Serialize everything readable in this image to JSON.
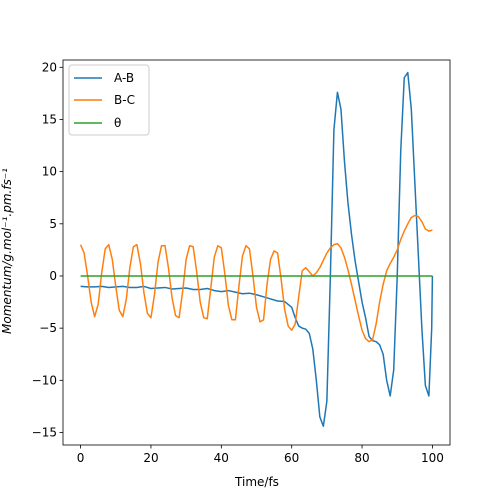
{
  "chart_data": {
    "type": "line",
    "xlabel": "Time/fs",
    "ylabel": "Momentum/g.mol⁻¹.pm.fs⁻¹",
    "xlim": [
      -5,
      105
    ],
    "ylim": [
      -16.2,
      20.7
    ],
    "xticks": [
      0,
      20,
      40,
      60,
      80,
      100
    ],
    "yticks": [
      -15,
      -10,
      -5,
      0,
      5,
      10,
      15,
      20
    ],
    "grid": false,
    "legend_position": "top-left",
    "series": [
      {
        "name": "A-B",
        "color": "#1f77b4",
        "x": [
          0,
          2,
          4,
          6,
          8,
          10,
          12,
          14,
          16,
          18,
          20,
          22,
          24,
          26,
          28,
          30,
          32,
          34,
          36,
          38,
          40,
          42,
          44,
          46,
          48,
          50,
          52,
          54,
          56,
          58,
          60,
          61,
          62,
          63,
          64,
          65,
          66,
          67,
          68,
          69,
          70,
          71,
          72,
          73,
          74,
          75,
          76,
          77,
          78,
          79,
          80,
          81,
          82,
          83,
          84,
          85,
          86,
          87,
          88,
          89,
          90,
          91,
          92,
          93,
          94,
          95,
          96,
          97,
          98,
          99,
          99.8,
          100
        ],
        "y": [
          -1.0,
          -1.05,
          -1.05,
          -1.0,
          -1.1,
          -1.05,
          -1.0,
          -1.1,
          -1.1,
          -1.0,
          -1.2,
          -1.15,
          -1.1,
          -1.25,
          -1.2,
          -1.15,
          -1.3,
          -1.3,
          -1.2,
          -1.4,
          -1.5,
          -1.4,
          -1.55,
          -1.7,
          -1.65,
          -1.8,
          -2.0,
          -2.2,
          -2.4,
          -2.45,
          -3.0,
          -4.0,
          -4.8,
          -5.0,
          -5.1,
          -5.5,
          -7.0,
          -10.0,
          -13.5,
          -14.4,
          -12.0,
          0.0,
          14.0,
          17.6,
          16.0,
          11.0,
          7.0,
          4.0,
          1.5,
          -0.5,
          -2.5,
          -4.0,
          -5.8,
          -6.2,
          -6.3,
          -6.6,
          -7.5,
          -10.0,
          -11.5,
          -9.0,
          0.0,
          12.0,
          19.0,
          19.5,
          16.0,
          9.0,
          2.0,
          -5.0,
          -10.5,
          -11.5,
          -5.0,
          0.0
        ]
      },
      {
        "name": "B-C",
        "color": "#ff7f0e",
        "x": [
          0,
          1,
          2,
          3,
          4,
          5,
          6,
          7,
          8,
          9,
          10,
          11,
          12,
          13,
          14,
          15,
          16,
          17,
          18,
          19,
          20,
          21,
          22,
          23,
          24,
          25,
          26,
          27,
          28,
          29,
          30,
          31,
          32,
          33,
          34,
          35,
          36,
          37,
          38,
          39,
          40,
          41,
          42,
          43,
          44,
          45,
          46,
          47,
          48,
          49,
          50,
          51,
          52,
          53,
          54,
          55,
          56,
          57,
          58,
          59,
          60,
          61,
          62,
          63,
          64,
          65,
          66,
          67,
          68,
          69,
          70,
          71,
          72,
          73,
          74,
          75,
          76,
          77,
          78,
          79,
          80,
          81,
          82,
          83,
          84,
          85,
          86,
          87,
          88,
          89,
          90,
          91,
          92,
          93,
          94,
          95,
          96,
          97,
          98,
          99,
          100
        ],
        "y": [
          3.0,
          2.2,
          0.0,
          -2.5,
          -3.9,
          -2.7,
          0.3,
          2.6,
          3.0,
          1.6,
          -1.0,
          -3.3,
          -3.9,
          -2.2,
          0.8,
          2.8,
          3.0,
          1.2,
          -1.6,
          -3.6,
          -4.0,
          -1.8,
          1.3,
          2.9,
          2.9,
          0.7,
          -2.1,
          -3.8,
          -4.0,
          -1.5,
          1.6,
          2.9,
          2.8,
          0.4,
          -2.5,
          -4.0,
          -4.1,
          -1.2,
          1.8,
          2.9,
          2.7,
          0.2,
          -2.8,
          -4.2,
          -4.2,
          -1.0,
          1.9,
          2.9,
          2.6,
          0.0,
          -3.0,
          -4.4,
          -4.2,
          -0.8,
          1.6,
          2.4,
          2.2,
          -0.3,
          -3.2,
          -4.8,
          -5.2,
          -4.6,
          -2.0,
          0.5,
          0.8,
          0.4,
          0.0,
          0.3,
          0.8,
          1.5,
          2.2,
          2.7,
          3.0,
          3.1,
          2.7,
          1.8,
          0.6,
          -0.8,
          -2.3,
          -3.8,
          -5.2,
          -6.0,
          -6.3,
          -6.1,
          -4.6,
          -2.5,
          -0.8,
          0.5,
          1.2,
          1.8,
          2.5,
          3.5,
          4.3,
          5.0,
          5.6,
          5.8,
          5.7,
          5.2,
          4.5,
          4.3,
          4.4
        ]
      },
      {
        "name": "θ",
        "color": "#2ca02c",
        "x": [
          0,
          100
        ],
        "y": [
          0.0,
          0.0
        ]
      }
    ]
  }
}
